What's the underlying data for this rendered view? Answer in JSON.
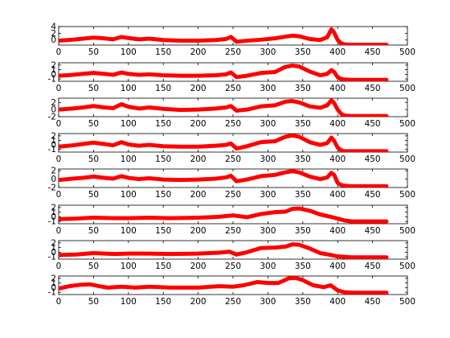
{
  "chart_data": [
    {
      "type": "line",
      "xlim": [
        0,
        500
      ],
      "ylim": [
        -1.5,
        4
      ],
      "yticks": [
        0,
        2,
        4
      ],
      "ytick_labels": [
        "0",
        "2",
        "4"
      ],
      "xticks": [
        0,
        50,
        100,
        150,
        200,
        250,
        300,
        350,
        400,
        450,
        500
      ],
      "xtick_labels": [
        "0",
        "50",
        "100",
        "150",
        "200",
        "250",
        "300",
        "350",
        "400",
        "450",
        "500"
      ],
      "grid": false,
      "series": [
        {
          "color": "#ff0000",
          "x": [
            0,
            20,
            35,
            50,
            65,
            78,
            90,
            100,
            115,
            130,
            150,
            175,
            200,
            225,
            240,
            247,
            255,
            270,
            290,
            310,
            325,
            335,
            345,
            360,
            375,
            385,
            391,
            395,
            400,
            405,
            410,
            420,
            440,
            470
          ],
          "y": [
            -0.2,
            0.1,
            0.4,
            0.7,
            0.5,
            0.2,
            0.9,
            0.6,
            0.2,
            0.4,
            0.0,
            -0.2,
            -0.2,
            0.0,
            0.3,
            0.9,
            -0.5,
            -0.2,
            0.1,
            0.5,
            1.0,
            1.3,
            1.1,
            0.3,
            0.0,
            0.8,
            3.2,
            2.2,
            0.0,
            -1.0,
            -1.3,
            -1.4,
            -1.4,
            -1.4
          ]
        }
      ]
    },
    {
      "type": "line",
      "xlim": [
        0,
        500
      ],
      "ylim": [
        -1.5,
        2.5
      ],
      "yticks": [
        -1,
        0,
        1,
        2
      ],
      "ytick_labels": [
        "-1",
        "0",
        "1",
        "2"
      ],
      "xticks": [
        0,
        50,
        100,
        150,
        200,
        250,
        300,
        350,
        400,
        450,
        500
      ],
      "xtick_labels": [
        "0",
        "50",
        "100",
        "150",
        "200",
        "250",
        "300",
        "350",
        "400",
        "450",
        "500"
      ],
      "grid": false,
      "series": [
        {
          "color": "#ff0000",
          "x": [
            0,
            20,
            35,
            50,
            65,
            78,
            90,
            100,
            115,
            130,
            150,
            175,
            200,
            225,
            240,
            247,
            255,
            270,
            290,
            310,
            325,
            335,
            345,
            360,
            375,
            385,
            391,
            395,
            400,
            405,
            410,
            420,
            440,
            470
          ],
          "y": [
            -0.3,
            -0.1,
            0.1,
            0.3,
            0.1,
            -0.1,
            0.4,
            0.1,
            -0.1,
            0.0,
            -0.2,
            -0.3,
            -0.3,
            -0.2,
            0.0,
            0.4,
            -0.6,
            -0.3,
            0.3,
            0.5,
            1.6,
            1.9,
            1.7,
            0.6,
            -0.2,
            0.1,
            0.9,
            0.5,
            -0.6,
            -1.0,
            -1.1,
            -1.2,
            -1.2,
            -1.2
          ]
        }
      ]
    },
    {
      "type": "line",
      "xlim": [
        0,
        500
      ],
      "ylim": [
        -2,
        3.2
      ],
      "yticks": [
        -2,
        0,
        2
      ],
      "ytick_labels": [
        "-2",
        "0",
        "2"
      ],
      "xticks": [
        0,
        50,
        100,
        150,
        200,
        250,
        300,
        350,
        400,
        450,
        500
      ],
      "xtick_labels": [
        "0",
        "50",
        "100",
        "150",
        "200",
        "250",
        "300",
        "350",
        "400",
        "450",
        "500"
      ],
      "grid": false,
      "series": [
        {
          "color": "#ff0000",
          "x": [
            0,
            20,
            35,
            50,
            65,
            78,
            90,
            100,
            115,
            130,
            150,
            175,
            200,
            225,
            240,
            247,
            255,
            270,
            290,
            310,
            325,
            335,
            345,
            360,
            375,
            385,
            391,
            395,
            400,
            405,
            410,
            420,
            440,
            470
          ],
          "y": [
            0.0,
            0.3,
            0.6,
            1.0,
            0.6,
            0.4,
            1.5,
            0.8,
            0.3,
            0.6,
            0.2,
            -0.1,
            0.0,
            0.3,
            0.6,
            1.0,
            -0.3,
            0.0,
            0.9,
            1.2,
            2.2,
            2.4,
            2.0,
            0.9,
            0.5,
            1.2,
            2.6,
            1.8,
            0.0,
            -1.2,
            -1.7,
            -1.8,
            -1.8,
            -1.8
          ]
        }
      ]
    },
    {
      "type": "line",
      "xlim": [
        0,
        500
      ],
      "ylim": [
        -1.6,
        2.5
      ],
      "yticks": [
        -1,
        0,
        1,
        2
      ],
      "ytick_labels": [
        "-1",
        "0",
        "1",
        "2"
      ],
      "xticks": [
        0,
        50,
        100,
        150,
        200,
        250,
        300,
        350,
        400,
        450,
        500
      ],
      "xtick_labels": [
        "0",
        "50",
        "100",
        "150",
        "200",
        "250",
        "300",
        "350",
        "400",
        "450",
        "500"
      ],
      "grid": false,
      "series": [
        {
          "color": "#ff0000",
          "x": [
            0,
            20,
            35,
            50,
            65,
            78,
            90,
            100,
            115,
            130,
            150,
            175,
            200,
            225,
            240,
            247,
            255,
            270,
            290,
            310,
            325,
            335,
            345,
            360,
            375,
            385,
            391,
            395,
            400,
            405,
            410,
            420,
            440,
            470
          ],
          "y": [
            -0.4,
            -0.1,
            0.2,
            0.5,
            0.2,
            -0.1,
            0.6,
            0.1,
            -0.2,
            0.0,
            -0.3,
            -0.4,
            -0.4,
            -0.2,
            0.0,
            0.3,
            -0.8,
            -0.3,
            0.6,
            0.8,
            1.8,
            2.1,
            1.8,
            0.6,
            0.0,
            0.4,
            1.6,
            0.9,
            -0.6,
            -1.2,
            -1.4,
            -1.4,
            -1.4,
            -1.4
          ]
        }
      ]
    },
    {
      "type": "line",
      "xlim": [
        0,
        500
      ],
      "ylim": [
        -2,
        2.4
      ],
      "yticks": [
        -2,
        0,
        2
      ],
      "ytick_labels": [
        "-2",
        "0",
        "2"
      ],
      "xticks": [
        0,
        50,
        100,
        150,
        200,
        250,
        300,
        350,
        400,
        450,
        500
      ],
      "xtick_labels": [
        "0",
        "50",
        "100",
        "150",
        "200",
        "250",
        "300",
        "350",
        "400",
        "450",
        "500"
      ],
      "grid": false,
      "series": [
        {
          "color": "#ff0000",
          "x": [
            0,
            20,
            35,
            50,
            65,
            78,
            90,
            100,
            115,
            130,
            150,
            175,
            200,
            225,
            240,
            247,
            255,
            270,
            290,
            310,
            325,
            335,
            345,
            360,
            375,
            385,
            391,
            395,
            400,
            405,
            410,
            420,
            440,
            470
          ],
          "y": [
            -0.2,
            0.1,
            0.3,
            0.6,
            0.3,
            0.1,
            0.7,
            0.3,
            0.0,
            0.2,
            -0.1,
            -0.2,
            -0.1,
            0.1,
            0.4,
            0.8,
            -0.5,
            -0.1,
            0.7,
            1.0,
            1.6,
            1.9,
            1.6,
            0.6,
            0.0,
            0.4,
            1.5,
            1.0,
            -0.9,
            -1.4,
            -1.6,
            -1.7,
            -1.7,
            -1.7
          ]
        }
      ]
    },
    {
      "type": "line",
      "xlim": [
        0,
        500
      ],
      "ylim": [
        -1.5,
        2.5
      ],
      "yticks": [
        -1,
        0,
        1,
        2
      ],
      "ytick_labels": [
        "-1",
        "0",
        "1",
        "2"
      ],
      "xticks": [
        0,
        50,
        100,
        150,
        200,
        250,
        300,
        350,
        400,
        450,
        500
      ],
      "xtick_labels": [
        "0",
        "50",
        "100",
        "150",
        "200",
        "250",
        "300",
        "350",
        "400",
        "450",
        "500"
      ],
      "grid": false,
      "series": [
        {
          "color": "#ff0000",
          "x": [
            0,
            25,
            50,
            80,
            100,
            130,
            160,
            200,
            230,
            250,
            270,
            290,
            310,
            325,
            335,
            345,
            360,
            375,
            390,
            400,
            410,
            420,
            440,
            470
          ],
          "y": [
            -0.5,
            -0.4,
            -0.2,
            -0.3,
            -0.3,
            -0.2,
            -0.3,
            -0.2,
            0.0,
            0.3,
            -0.1,
            0.6,
            1.0,
            1.1,
            1.7,
            1.8,
            1.3,
            0.5,
            0.0,
            -0.4,
            -0.8,
            -1.0,
            -1.0,
            -1.0
          ]
        }
      ]
    },
    {
      "type": "line",
      "xlim": [
        0,
        500
      ],
      "ylim": [
        -1.5,
        2.5
      ],
      "yticks": [
        -1,
        0,
        1,
        2
      ],
      "ytick_labels": [
        "-1",
        "0",
        "1",
        "2"
      ],
      "xticks": [
        0,
        50,
        100,
        150,
        200,
        250,
        300,
        350,
        400,
        450,
        500
      ],
      "xtick_labels": [
        "0",
        "50",
        "100",
        "150",
        "200",
        "250",
        "300",
        "350",
        "400",
        "450",
        "500"
      ],
      "grid": false,
      "series": [
        {
          "color": "#ff0000",
          "x": [
            0,
            25,
            50,
            80,
            100,
            130,
            160,
            200,
            230,
            245,
            255,
            270,
            290,
            310,
            325,
            335,
            345,
            360,
            375,
            390,
            400,
            410,
            420,
            440,
            470
          ],
          "y": [
            -0.6,
            -0.5,
            -0.2,
            -0.4,
            -0.3,
            -0.3,
            -0.4,
            -0.3,
            -0.1,
            0.1,
            -0.5,
            0.0,
            0.9,
            1.0,
            1.2,
            1.7,
            1.6,
            0.8,
            -0.2,
            -0.6,
            -0.9,
            -1.0,
            -1.1,
            -1.1,
            -1.1
          ]
        }
      ]
    },
    {
      "type": "line",
      "xlim": [
        0,
        500
      ],
      "ylim": [
        -1.5,
        2.5
      ],
      "yticks": [
        -1,
        0,
        1,
        2
      ],
      "ytick_labels": [
        "-1",
        "0",
        "1",
        "2"
      ],
      "xticks": [
        0,
        50,
        100,
        150,
        200,
        250,
        300,
        350,
        400,
        450,
        500
      ],
      "xtick_labels": [
        "0",
        "50",
        "100",
        "150",
        "200",
        "250",
        "300",
        "350",
        "400",
        "450",
        "500"
      ],
      "grid": false,
      "series": [
        {
          "color": "#ff0000",
          "x": [
            0,
            15,
            30,
            45,
            55,
            70,
            90,
            110,
            130,
            160,
            200,
            230,
            250,
            265,
            285,
            300,
            315,
            330,
            340,
            350,
            365,
            380,
            390,
            400,
            410,
            420,
            440,
            470
          ],
          "y": [
            -0.2,
            0.3,
            0.6,
            0.7,
            0.4,
            0.0,
            0.2,
            0.0,
            0.2,
            0.0,
            0.0,
            0.3,
            0.2,
            0.5,
            1.2,
            1.0,
            1.0,
            2.0,
            2.1,
            1.6,
            0.5,
            0.1,
            0.5,
            -0.6,
            -1.0,
            -1.1,
            -1.1,
            -1.1
          ]
        }
      ]
    }
  ]
}
